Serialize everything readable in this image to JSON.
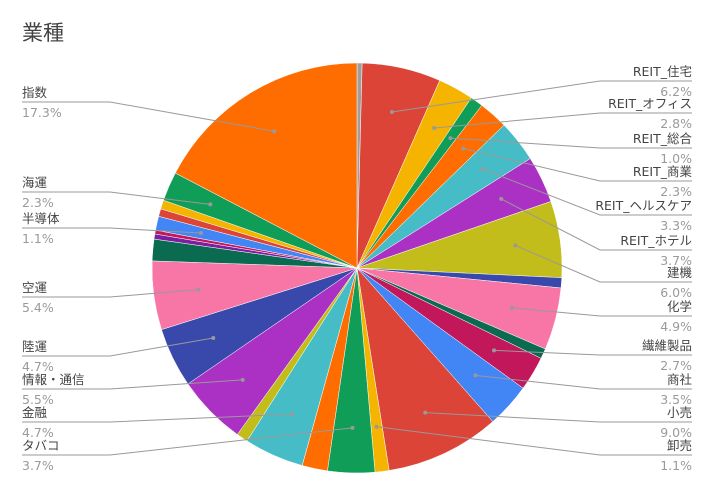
{
  "chart_data": {
    "type": "pie",
    "title": "業種",
    "categories": [
      null,
      "REIT_住宅",
      "REIT_オフィス",
      "REIT_総合",
      "REIT_商業",
      "REIT_ヘルスケア",
      "REIT_ホテル",
      "建機",
      null,
      "化学",
      null,
      "繊維製品",
      "商社",
      "小売",
      "卸売",
      "タバコ",
      null,
      "金融",
      null,
      "情報・通信",
      "陸運",
      "空運",
      null,
      null,
      null,
      "半導体",
      null,
      null,
      "海運",
      "指数"
    ],
    "values": [
      0.4,
      6.2,
      2.8,
      1.0,
      2.3,
      3.3,
      3.7,
      6.0,
      0.8,
      4.9,
      0.8,
      2.7,
      3.5,
      9.0,
      1.1,
      3.7,
      2.0,
      4.7,
      0.9,
      5.5,
      4.7,
      5.4,
      1.7,
      0.4,
      0.3,
      1.1,
      0.6,
      0.7,
      2.3,
      17.3
    ],
    "value_labels": [
      null,
      "6.2%",
      "2.8%",
      "1.0%",
      "2.3%",
      "3.3%",
      "3.7%",
      "6.0%",
      null,
      "4.9%",
      null,
      "2.7%",
      "3.5%",
      "9.0%",
      "1.1%",
      "3.7%",
      null,
      "4.7%",
      null,
      "5.5%",
      "4.7%",
      "5.4%",
      null,
      null,
      null,
      "1.1%",
      null,
      null,
      "2.3%",
      "17.3%"
    ],
    "colors": [
      "#9e9e9e",
      "#db4437",
      "#f4b400",
      "#0f9d58",
      "#ff6d01",
      "#46bdc6",
      "#ab30c4",
      "#c2bd1a",
      "#3949ab",
      "#f776a6",
      "#0b6b50",
      "#c2185b",
      "#4285f4",
      "#db4437",
      "#f4b400",
      "#0f9d58",
      "#ff6d01",
      "#46bdc6",
      "#c2bd1a",
      "#ab30c4",
      "#3949ab",
      "#f776a6",
      "#0b6b50",
      "#7b1fa2",
      "#c2185b",
      "#4285f4",
      "#db4437",
      "#f4b400",
      "#0f9d58",
      "#ff6d01"
    ]
  }
}
